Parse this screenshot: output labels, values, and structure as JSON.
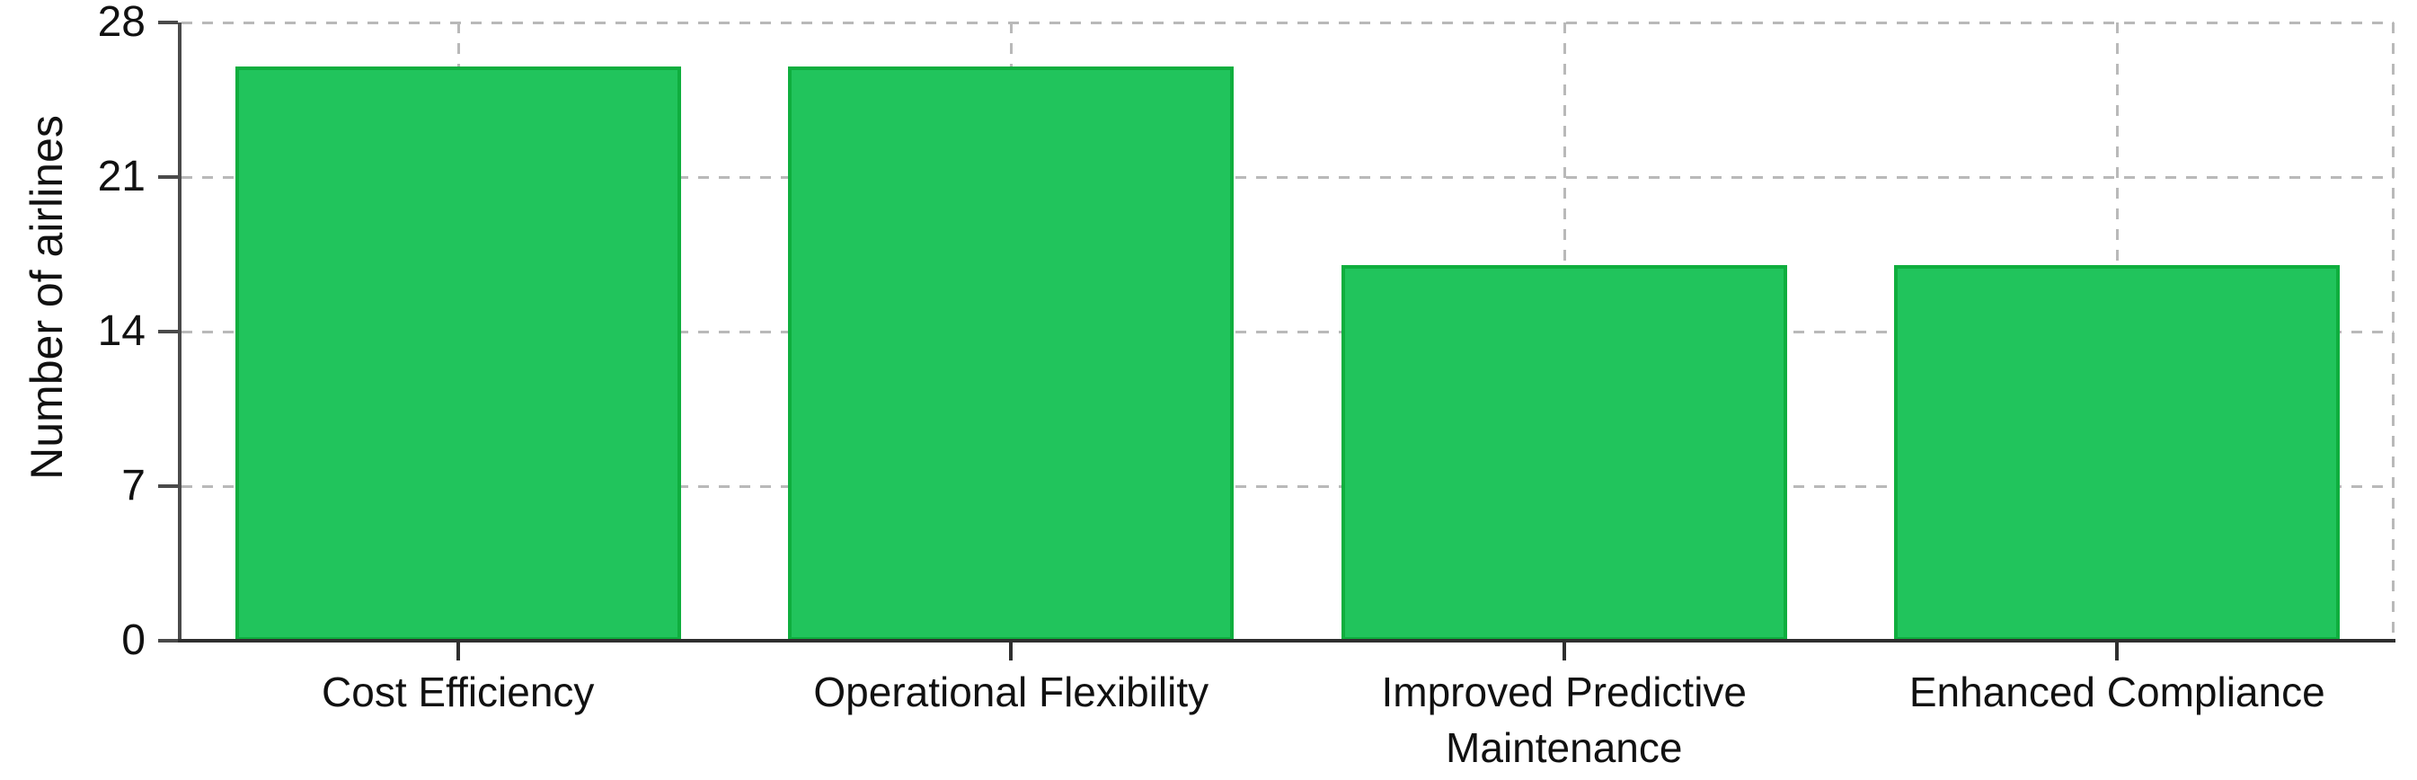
{
  "chart_data": {
    "type": "bar",
    "title": "",
    "xlabel": "",
    "ylabel": "Number of airlines",
    "categories": [
      "Cost Efficiency",
      "Operational Flexibility",
      "Improved Predictive\nMaintenance",
      "Enhanced Compliance"
    ],
    "values": [
      26,
      26,
      17,
      17
    ],
    "ylim": [
      0,
      28
    ],
    "yticks": [
      0,
      7,
      14,
      21,
      28
    ],
    "grid": "dashed",
    "legend": "none",
    "colors": {
      "bar_fill": "#21c45c",
      "bar_border": "#0fae3e",
      "gridline": "#b9b9b9",
      "y_axis": "#4a4a4a",
      "x_axis": "#2f2f2f",
      "text": "#111111",
      "background": "#ffffff"
    }
  }
}
